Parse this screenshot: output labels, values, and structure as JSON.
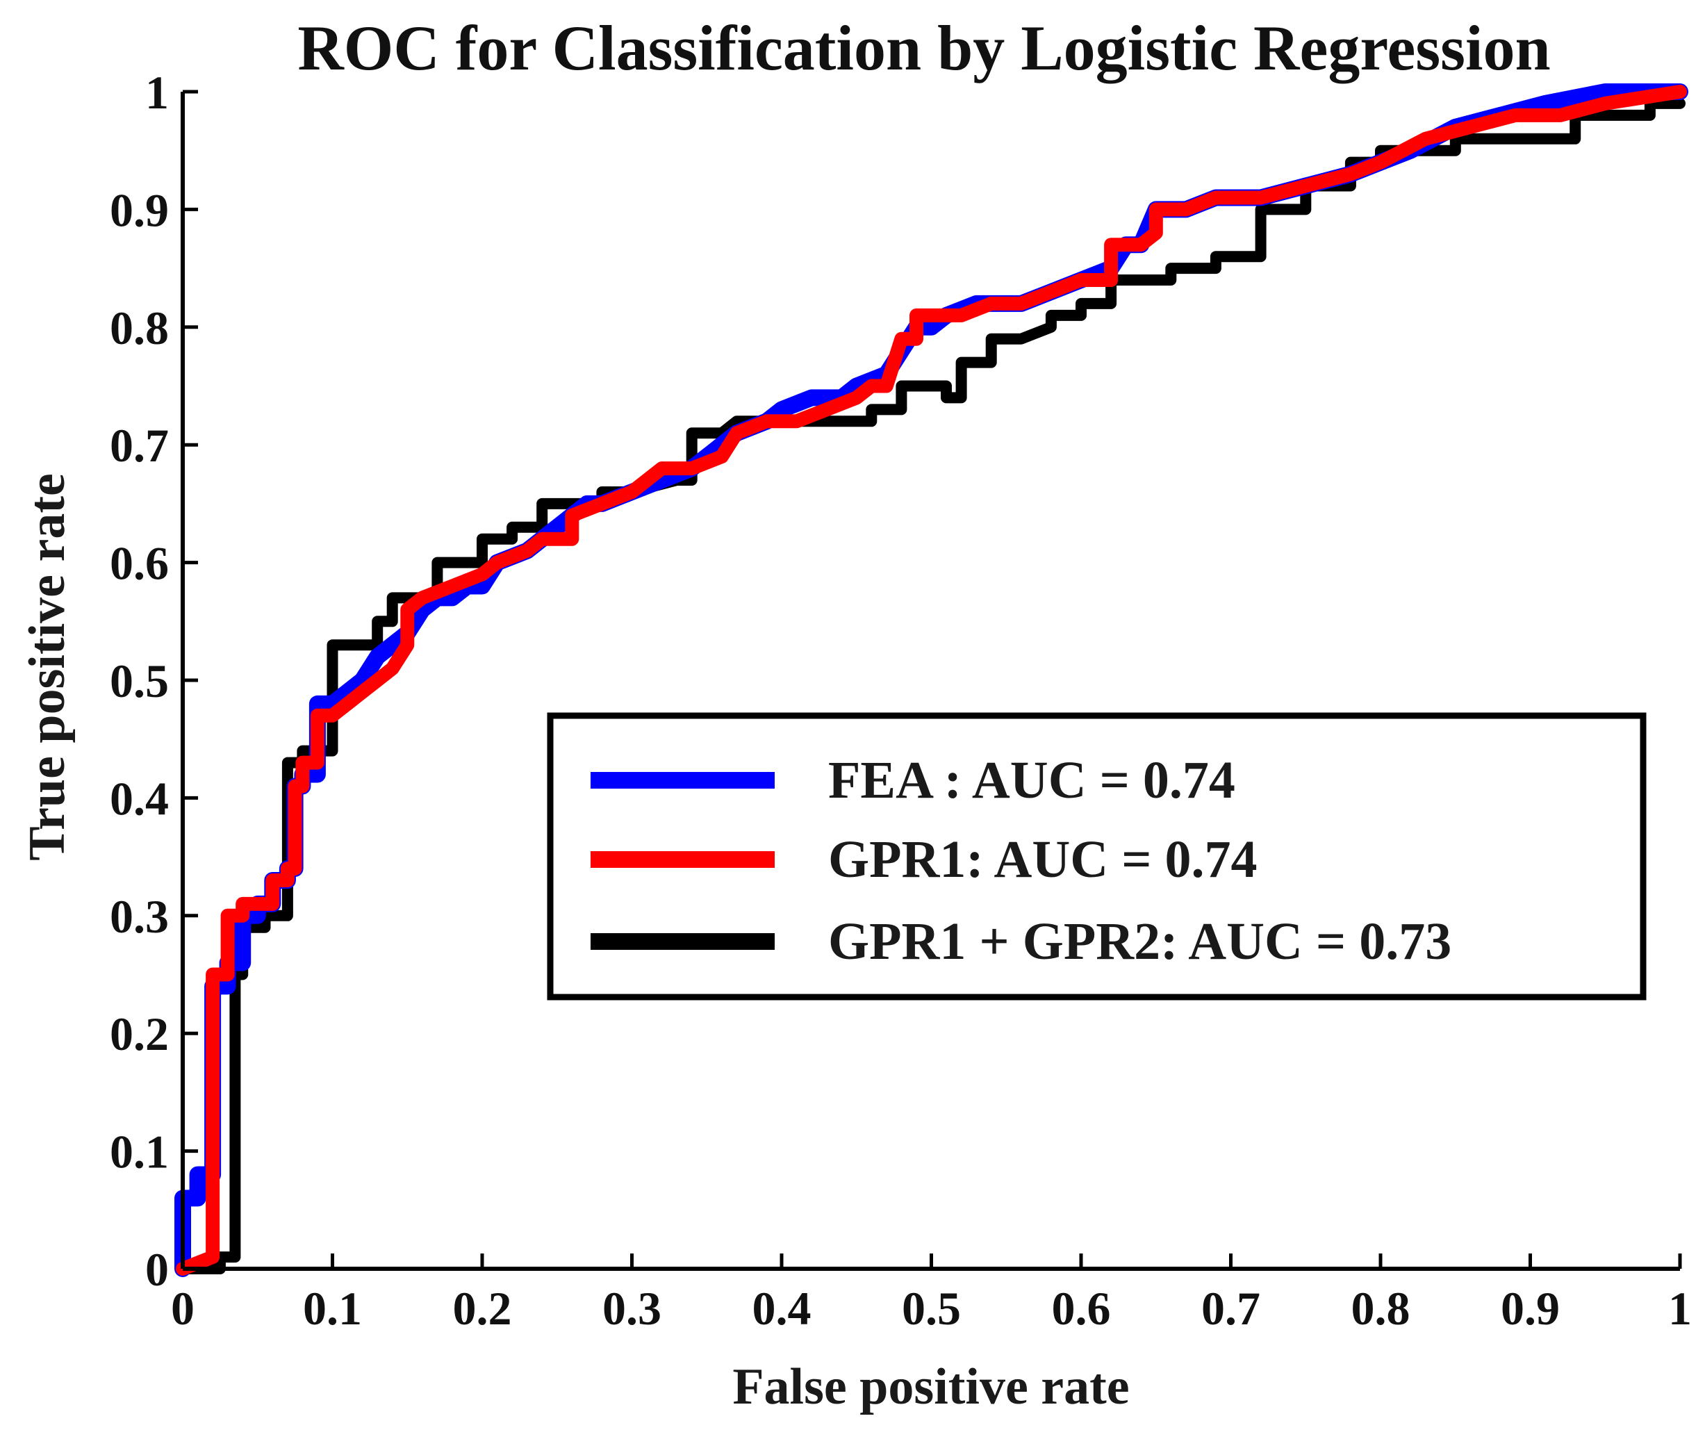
{
  "chart_data": {
    "type": "line",
    "title": "ROC for Classification by Logistic Regression",
    "xlabel": "False positive rate",
    "ylabel": "True positive rate",
    "xlim": [
      0,
      1
    ],
    "ylim": [
      0,
      1
    ],
    "xticks": [
      "0",
      "0.1",
      "0.2",
      "0.3",
      "0.4",
      "0.5",
      "0.6",
      "0.7",
      "0.8",
      "0.9",
      "1"
    ],
    "yticks": [
      "0",
      "0.1",
      "0.2",
      "0.3",
      "0.4",
      "0.5",
      "0.6",
      "0.7",
      "0.8",
      "0.9",
      "1"
    ],
    "grid": false,
    "legend_position": "center-right",
    "series": [
      {
        "name": "FEA : AUC = 0.74",
        "color": "#0000ff",
        "points": [
          [
            0,
            0
          ],
          [
            0,
            0.06
          ],
          [
            0.01,
            0.06
          ],
          [
            0.01,
            0.08
          ],
          [
            0.02,
            0.08
          ],
          [
            0.02,
            0.24
          ],
          [
            0.03,
            0.24
          ],
          [
            0.03,
            0.26
          ],
          [
            0.04,
            0.26
          ],
          [
            0.04,
            0.3
          ],
          [
            0.05,
            0.3
          ],
          [
            0.05,
            0.31
          ],
          [
            0.06,
            0.31
          ],
          [
            0.06,
            0.33
          ],
          [
            0.07,
            0.33
          ],
          [
            0.07,
            0.34
          ],
          [
            0.075,
            0.34
          ],
          [
            0.075,
            0.41
          ],
          [
            0.08,
            0.41
          ],
          [
            0.08,
            0.42
          ],
          [
            0.09,
            0.42
          ],
          [
            0.09,
            0.48
          ],
          [
            0.1,
            0.48
          ],
          [
            0.11,
            0.49
          ],
          [
            0.12,
            0.5
          ],
          [
            0.13,
            0.52
          ],
          [
            0.14,
            0.53
          ],
          [
            0.15,
            0.54
          ],
          [
            0.16,
            0.56
          ],
          [
            0.17,
            0.57
          ],
          [
            0.18,
            0.57
          ],
          [
            0.19,
            0.58
          ],
          [
            0.2,
            0.58
          ],
          [
            0.21,
            0.6
          ],
          [
            0.23,
            0.61
          ],
          [
            0.24,
            0.62
          ],
          [
            0.25,
            0.63
          ],
          [
            0.26,
            0.64
          ],
          [
            0.27,
            0.65
          ],
          [
            0.28,
            0.65
          ],
          [
            0.3,
            0.66
          ],
          [
            0.32,
            0.67
          ],
          [
            0.34,
            0.68
          ],
          [
            0.35,
            0.69
          ],
          [
            0.36,
            0.7
          ],
          [
            0.37,
            0.71
          ],
          [
            0.39,
            0.72
          ],
          [
            0.4,
            0.73
          ],
          [
            0.42,
            0.74
          ],
          [
            0.44,
            0.74
          ],
          [
            0.45,
            0.75
          ],
          [
            0.47,
            0.76
          ],
          [
            0.48,
            0.78
          ],
          [
            0.49,
            0.8
          ],
          [
            0.5,
            0.8
          ],
          [
            0.51,
            0.81
          ],
          [
            0.53,
            0.82
          ],
          [
            0.56,
            0.82
          ],
          [
            0.58,
            0.83
          ],
          [
            0.6,
            0.84
          ],
          [
            0.62,
            0.85
          ],
          [
            0.63,
            0.87
          ],
          [
            0.64,
            0.87
          ],
          [
            0.65,
            0.9
          ],
          [
            0.67,
            0.9
          ],
          [
            0.69,
            0.91
          ],
          [
            0.7,
            0.91
          ],
          [
            0.72,
            0.91
          ],
          [
            0.75,
            0.92
          ],
          [
            0.78,
            0.93
          ],
          [
            0.8,
            0.94
          ],
          [
            0.82,
            0.95
          ],
          [
            0.85,
            0.97
          ],
          [
            0.88,
            0.98
          ],
          [
            0.91,
            0.99
          ],
          [
            0.95,
            1.0
          ],
          [
            1.0,
            1.0
          ]
        ]
      },
      {
        "name": "GPR1: AUC = 0.74",
        "color": "#ff0000",
        "points": [
          [
            0,
            0
          ],
          [
            0.02,
            0.01
          ],
          [
            0.02,
            0.25
          ],
          [
            0.03,
            0.25
          ],
          [
            0.03,
            0.3
          ],
          [
            0.04,
            0.3
          ],
          [
            0.04,
            0.31
          ],
          [
            0.06,
            0.31
          ],
          [
            0.06,
            0.33
          ],
          [
            0.07,
            0.33
          ],
          [
            0.07,
            0.34
          ],
          [
            0.075,
            0.34
          ],
          [
            0.075,
            0.41
          ],
          [
            0.08,
            0.41
          ],
          [
            0.08,
            0.43
          ],
          [
            0.09,
            0.43
          ],
          [
            0.09,
            0.47
          ],
          [
            0.1,
            0.47
          ],
          [
            0.11,
            0.48
          ],
          [
            0.12,
            0.49
          ],
          [
            0.13,
            0.5
          ],
          [
            0.14,
            0.51
          ],
          [
            0.15,
            0.53
          ],
          [
            0.15,
            0.56
          ],
          [
            0.16,
            0.57
          ],
          [
            0.18,
            0.58
          ],
          [
            0.2,
            0.59
          ],
          [
            0.21,
            0.6
          ],
          [
            0.23,
            0.61
          ],
          [
            0.24,
            0.62
          ],
          [
            0.26,
            0.62
          ],
          [
            0.26,
            0.64
          ],
          [
            0.28,
            0.65
          ],
          [
            0.3,
            0.66
          ],
          [
            0.32,
            0.68
          ],
          [
            0.34,
            0.68
          ],
          [
            0.36,
            0.69
          ],
          [
            0.37,
            0.71
          ],
          [
            0.39,
            0.72
          ],
          [
            0.41,
            0.72
          ],
          [
            0.43,
            0.73
          ],
          [
            0.45,
            0.74
          ],
          [
            0.46,
            0.75
          ],
          [
            0.47,
            0.75
          ],
          [
            0.48,
            0.79
          ],
          [
            0.49,
            0.79
          ],
          [
            0.49,
            0.81
          ],
          [
            0.52,
            0.81
          ],
          [
            0.54,
            0.82
          ],
          [
            0.56,
            0.82
          ],
          [
            0.58,
            0.83
          ],
          [
            0.6,
            0.84
          ],
          [
            0.62,
            0.84
          ],
          [
            0.62,
            0.87
          ],
          [
            0.64,
            0.87
          ],
          [
            0.65,
            0.88
          ],
          [
            0.65,
            0.9
          ],
          [
            0.67,
            0.9
          ],
          [
            0.69,
            0.91
          ],
          [
            0.72,
            0.91
          ],
          [
            0.75,
            0.92
          ],
          [
            0.78,
            0.93
          ],
          [
            0.8,
            0.94
          ],
          [
            0.83,
            0.96
          ],
          [
            0.86,
            0.97
          ],
          [
            0.89,
            0.98
          ],
          [
            0.92,
            0.98
          ],
          [
            0.95,
            0.99
          ],
          [
            1.0,
            1.0
          ]
        ]
      },
      {
        "name": "GPR1 + GPR2: AUC = 0.73",
        "color": "#000000",
        "points": [
          [
            0,
            0
          ],
          [
            0.025,
            0
          ],
          [
            0.025,
            0.01
          ],
          [
            0.035,
            0.01
          ],
          [
            0.035,
            0.25
          ],
          [
            0.04,
            0.25
          ],
          [
            0.04,
            0.29
          ],
          [
            0.055,
            0.29
          ],
          [
            0.055,
            0.3
          ],
          [
            0.07,
            0.3
          ],
          [
            0.07,
            0.43
          ],
          [
            0.08,
            0.43
          ],
          [
            0.08,
            0.44
          ],
          [
            0.1,
            0.44
          ],
          [
            0.1,
            0.53
          ],
          [
            0.13,
            0.53
          ],
          [
            0.13,
            0.55
          ],
          [
            0.14,
            0.55
          ],
          [
            0.14,
            0.57
          ],
          [
            0.17,
            0.57
          ],
          [
            0.17,
            0.6
          ],
          [
            0.2,
            0.6
          ],
          [
            0.2,
            0.62
          ],
          [
            0.22,
            0.62
          ],
          [
            0.22,
            0.63
          ],
          [
            0.24,
            0.63
          ],
          [
            0.24,
            0.65
          ],
          [
            0.28,
            0.65
          ],
          [
            0.28,
            0.66
          ],
          [
            0.3,
            0.66
          ],
          [
            0.33,
            0.67
          ],
          [
            0.34,
            0.67
          ],
          [
            0.34,
            0.71
          ],
          [
            0.36,
            0.71
          ],
          [
            0.37,
            0.72
          ],
          [
            0.46,
            0.72
          ],
          [
            0.46,
            0.73
          ],
          [
            0.48,
            0.73
          ],
          [
            0.48,
            0.75
          ],
          [
            0.51,
            0.75
          ],
          [
            0.51,
            0.74
          ],
          [
            0.52,
            0.74
          ],
          [
            0.52,
            0.77
          ],
          [
            0.54,
            0.77
          ],
          [
            0.54,
            0.79
          ],
          [
            0.56,
            0.79
          ],
          [
            0.58,
            0.8
          ],
          [
            0.58,
            0.81
          ],
          [
            0.6,
            0.81
          ],
          [
            0.6,
            0.82
          ],
          [
            0.62,
            0.82
          ],
          [
            0.62,
            0.84
          ],
          [
            0.66,
            0.84
          ],
          [
            0.66,
            0.85
          ],
          [
            0.69,
            0.85
          ],
          [
            0.69,
            0.86
          ],
          [
            0.72,
            0.86
          ],
          [
            0.72,
            0.9
          ],
          [
            0.75,
            0.9
          ],
          [
            0.75,
            0.92
          ],
          [
            0.78,
            0.92
          ],
          [
            0.78,
            0.94
          ],
          [
            0.8,
            0.94
          ],
          [
            0.8,
            0.95
          ],
          [
            0.85,
            0.95
          ],
          [
            0.85,
            0.96
          ],
          [
            0.93,
            0.96
          ],
          [
            0.93,
            0.98
          ],
          [
            0.98,
            0.98
          ],
          [
            0.98,
            0.99
          ],
          [
            1.0,
            0.99
          ]
        ]
      }
    ]
  }
}
